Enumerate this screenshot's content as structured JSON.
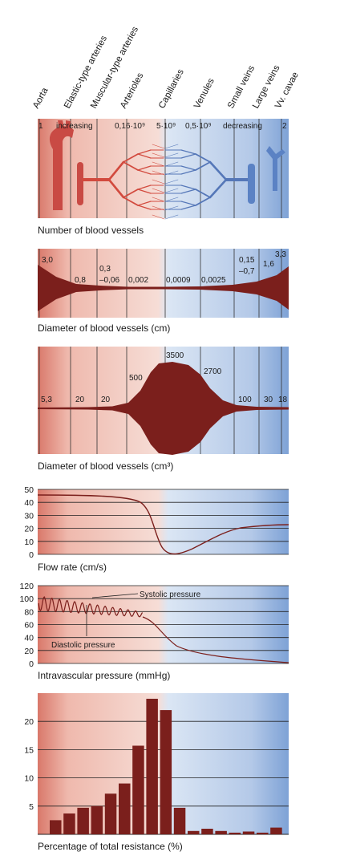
{
  "headers": [
    "Aorta",
    "Elastic-type arteries",
    "Muscular-type arteries",
    "Arterioles",
    "Capillaries",
    "Venules",
    "Small veins",
    "Large veins",
    "Vv. cavae"
  ],
  "colors": {
    "artery": "#d9786a",
    "vein": "#7ea2d6",
    "fill": "#7b1f1c",
    "line": "#222222"
  },
  "panel_number": {
    "caption": "Number of blood vessels",
    "labels": [
      "1",
      "increasing",
      "0,16·10⁹",
      "5·10⁹",
      "0,5·10⁹",
      "decreasing",
      "2"
    ]
  },
  "panel_diameter": {
    "caption": "Diameter of blood vessels (cm)",
    "labels": [
      "3,0",
      "0,8",
      "0,3",
      "–0,06",
      "0,002",
      "0,0009",
      "0,0025",
      "0,15",
      "–0,7",
      "1,6",
      "3,3"
    ]
  },
  "panel_area": {
    "caption": "Diameter of blood vessels (cm³)",
    "labels": [
      "5,3",
      "20",
      "20",
      "500",
      "3500",
      "2700",
      "100",
      "30",
      "18"
    ]
  },
  "panel_flow": {
    "caption": "Flow rate (cm/s)",
    "ticks": [
      "0",
      "10",
      "20",
      "30",
      "40",
      "50"
    ]
  },
  "panel_pressure": {
    "caption": "Intravascular pressure (mmHg)",
    "ticks": [
      "0",
      "20",
      "40",
      "60",
      "80",
      "100",
      "120"
    ],
    "systolic": "Systolic pressure",
    "diastolic": "Diastolic pressure"
  },
  "chart_data": {
    "type": "bar",
    "xlabel": "Percentage of total resistance (%)",
    "ylim": [
      0,
      25
    ],
    "yticks": [
      "5",
      "10",
      "15",
      "20"
    ],
    "values": [
      2.5,
      3.7,
      4.7,
      5.0,
      7.2,
      9.0,
      15.7,
      24.0,
      22.0,
      4.7,
      0.6,
      1.0,
      0.6,
      0.3,
      0.5,
      0.3,
      1.2
    ]
  }
}
